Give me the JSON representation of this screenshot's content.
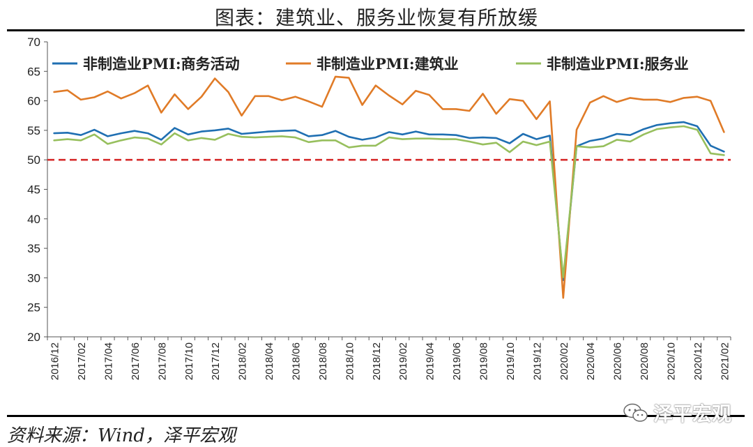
{
  "title": "图表：建筑业、服务业恢复有所放缓",
  "source": "资料来源：Wind，泽平宏观",
  "watermark": "泽平宏观",
  "chart_data": {
    "type": "line",
    "ylim": [
      20,
      70
    ],
    "yticks": [
      20,
      25,
      30,
      35,
      40,
      45,
      50,
      55,
      60,
      65,
      70
    ],
    "x": [
      "2016/12",
      "2017/01",
      "2017/02",
      "2017/03",
      "2017/04",
      "2017/05",
      "2017/06",
      "2017/07",
      "2017/08",
      "2017/09",
      "2017/10",
      "2017/11",
      "2017/12",
      "2018/01",
      "2018/02",
      "2018/03",
      "2018/04",
      "2018/05",
      "2018/06",
      "2018/07",
      "2018/08",
      "2018/09",
      "2018/10",
      "2018/11",
      "2018/12",
      "2019/01",
      "2019/02",
      "2019/03",
      "2019/04",
      "2019/05",
      "2019/06",
      "2019/07",
      "2019/08",
      "2019/09",
      "2019/10",
      "2019/11",
      "2019/12",
      "2020/01",
      "2020/02",
      "2020/03",
      "2020/04",
      "2020/05",
      "2020/06",
      "2020/07",
      "2020/08",
      "2020/09",
      "2020/10",
      "2020/11",
      "2020/12",
      "2021/01",
      "2021/02"
    ],
    "xticks": [
      "2016/12",
      "2017/02",
      "2017/04",
      "2017/06",
      "2017/08",
      "2017/10",
      "2017/12",
      "2018/02",
      "2018/04",
      "2018/06",
      "2018/08",
      "2018/10",
      "2018/12",
      "2019/02",
      "2019/04",
      "2019/06",
      "2019/08",
      "2019/10",
      "2019/12",
      "2020/02",
      "2020/04",
      "2020/06",
      "2020/08",
      "2020/10",
      "2020/12",
      "2021/02"
    ],
    "reference_line": {
      "value": 50,
      "color": "#d62a2a",
      "style": "dashed"
    },
    "legend_position": "top",
    "series": [
      {
        "name": "非制造业PMI:商务活动",
        "color": "#1f6fb2",
        "values": [
          54.5,
          54.6,
          54.2,
          55.1,
          54.0,
          54.5,
          54.9,
          54.5,
          53.4,
          55.4,
          54.3,
          54.8,
          55.0,
          55.3,
          54.4,
          54.6,
          54.8,
          54.9,
          55.0,
          54.0,
          54.2,
          54.9,
          53.9,
          53.4,
          53.8,
          54.7,
          54.3,
          54.8,
          54.3,
          54.3,
          54.2,
          53.7,
          53.8,
          53.7,
          52.8,
          54.4,
          53.5,
          54.1,
          29.6,
          52.3,
          53.2,
          53.6,
          54.4,
          54.2,
          55.2,
          55.9,
          56.2,
          56.4,
          55.7,
          52.4,
          51.4
        ]
      },
      {
        "name": "非制造业PMI:建筑业",
        "color": "#e07b27",
        "values": [
          61.5,
          61.8,
          60.2,
          60.6,
          61.6,
          60.4,
          61.3,
          62.6,
          58.0,
          61.1,
          58.6,
          60.7,
          63.8,
          61.5,
          57.5,
          60.8,
          60.8,
          60.1,
          60.7,
          59.9,
          59.0,
          64.1,
          63.9,
          59.3,
          62.6,
          60.9,
          59.4,
          61.7,
          61.0,
          58.6,
          58.6,
          58.3,
          61.2,
          57.8,
          60.3,
          60.0,
          56.9,
          59.9,
          26.6,
          55.1,
          59.7,
          60.8,
          59.8,
          60.5,
          60.2,
          60.2,
          59.8,
          60.5,
          60.7,
          60.0,
          54.7
        ]
      },
      {
        "name": "非制造业PMI:服务业",
        "color": "#97bf5d",
        "values": [
          53.3,
          53.5,
          53.3,
          54.3,
          52.7,
          53.3,
          53.8,
          53.6,
          52.6,
          54.5,
          53.3,
          53.7,
          53.4,
          54.4,
          53.9,
          53.8,
          53.9,
          54.0,
          53.8,
          53.0,
          53.3,
          53.3,
          52.1,
          52.4,
          52.4,
          53.8,
          53.5,
          53.6,
          53.6,
          53.5,
          53.5,
          53.1,
          52.6,
          52.9,
          51.3,
          53.1,
          52.5,
          53.1,
          30.1,
          52.3,
          52.1,
          52.3,
          53.4,
          53.1,
          54.3,
          55.2,
          55.5,
          55.7,
          55.1,
          51.1,
          50.8
        ]
      }
    ]
  }
}
